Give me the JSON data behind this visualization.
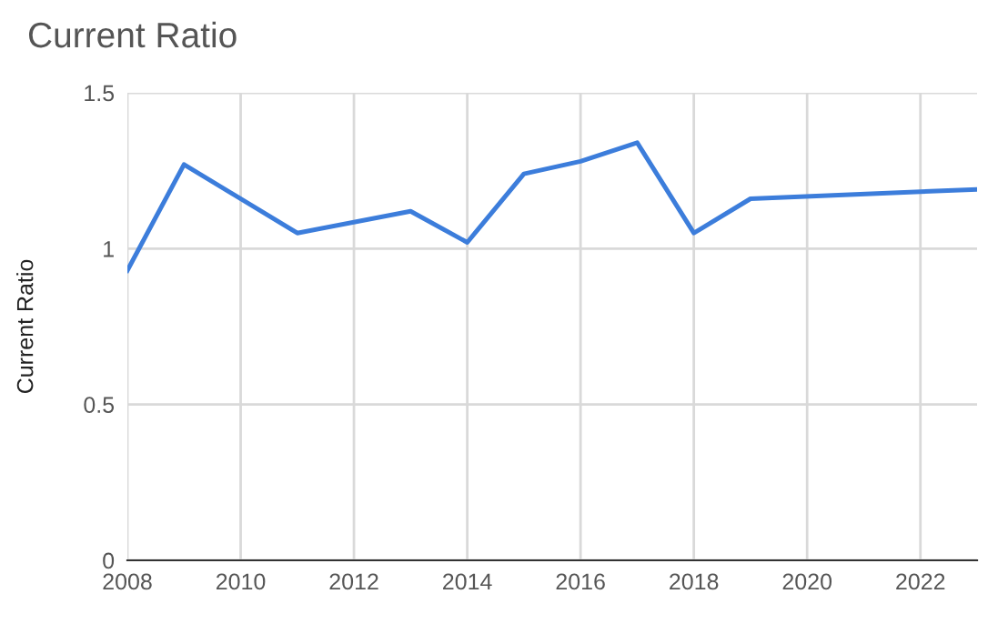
{
  "chart_data": {
    "type": "line",
    "title": "Current Ratio",
    "ylabel": "Current Ratio",
    "x": [
      2008,
      2009,
      2011,
      2013,
      2014,
      2015,
      2016,
      2017,
      2018,
      2019,
      2023
    ],
    "series": [
      {
        "color": "#3c7ddb",
        "values": [
          0.93,
          1.27,
          1.05,
          1.12,
          1.02,
          1.24,
          1.28,
          1.34,
          1.05,
          1.16,
          1.19
        ]
      }
    ],
    "xlim": [
      2008,
      2023
    ],
    "xticks": [
      2008,
      2010,
      2012,
      2014,
      2016,
      2018,
      2020,
      2022
    ],
    "ylim": [
      0,
      1.5
    ],
    "yticks": [
      0,
      0.5,
      1,
      1.5
    ],
    "grid": true,
    "legend": false,
    "marker": "none",
    "line_style": "solid"
  }
}
